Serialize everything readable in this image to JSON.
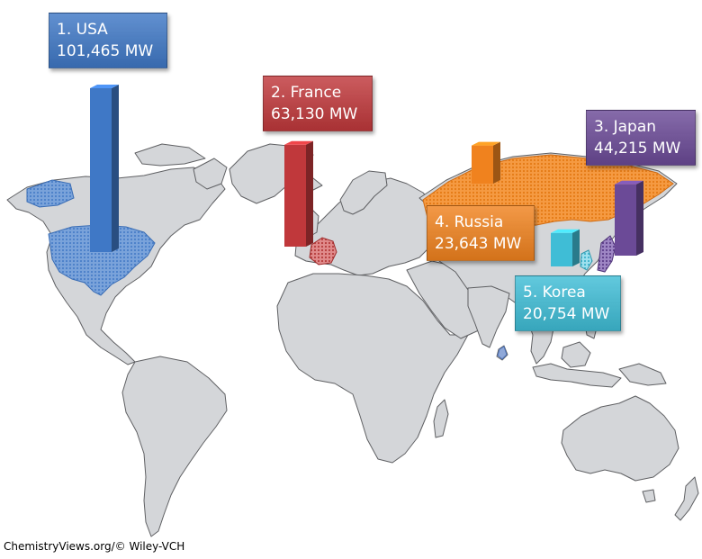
{
  "map": {
    "land_color": "#d4d6d9",
    "border_color": "#5f6063"
  },
  "countries": [
    {
      "rank_label": "1. USA",
      "value_label": "101,465 MW",
      "value": 101465,
      "color": "#3f78c6",
      "region": "usa-region"
    },
    {
      "rank_label": "2. France",
      "value_label": "63,130 MW",
      "value": 63130,
      "color": "#c0383b",
      "region": "france-region"
    },
    {
      "rank_label": "3. Japan",
      "value_label": "44,215 MW",
      "value": 44215,
      "color": "#6b4a97",
      "region": "japan-region"
    },
    {
      "rank_label": "4. Russia",
      "value_label": "23,643 MW",
      "value": 23643,
      "color": "#f0821e",
      "region": "russia-region"
    },
    {
      "rank_label": "5. Korea",
      "value_label": "20,754 MW",
      "value": 20754,
      "color": "#3fbdd6",
      "region": "korea-region"
    }
  ],
  "credit": "ChemistryViews.org/© Wiley-VCH"
}
